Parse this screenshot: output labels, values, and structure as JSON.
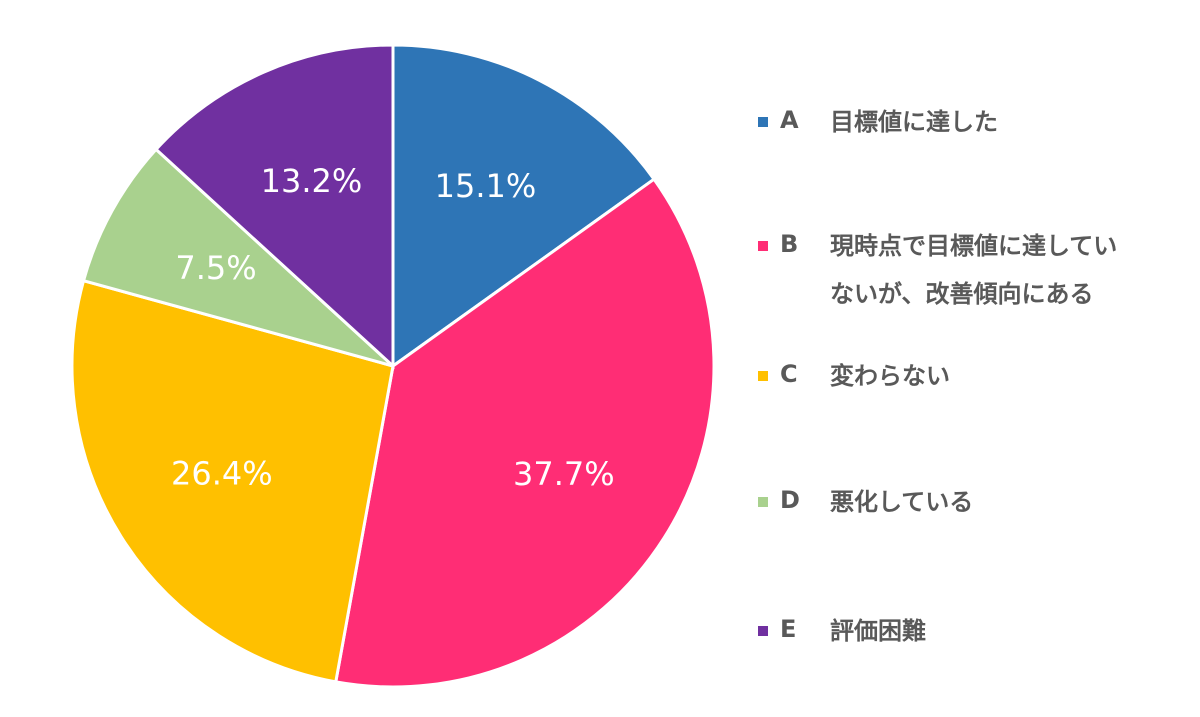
{
  "chart_data": {
    "type": "pie",
    "title": "",
    "start": "top",
    "direction": "clockwise",
    "legend_position": "right",
    "label_color": "#ffffff",
    "slices": [
      {
        "letter": "A",
        "label": "目標値に達した",
        "value": 15.1,
        "display": "15.1%",
        "color": "#2E75B6"
      },
      {
        "letter": "B",
        "label": "現時点で目標値に達していないが、改善傾向にある",
        "value": 37.7,
        "display": "37.7%",
        "color": "#FF2D75"
      },
      {
        "letter": "C",
        "label": "変わらない",
        "value": 26.4,
        "display": "26.4%",
        "color": "#FFC000"
      },
      {
        "letter": "D",
        "label": "悪化している",
        "value": 7.5,
        "display": "7.5%",
        "color": "#A9D18E"
      },
      {
        "letter": "E",
        "label": "評価困難",
        "value": 13.2,
        "display": "13.2%",
        "color": "#7030A0"
      }
    ]
  }
}
